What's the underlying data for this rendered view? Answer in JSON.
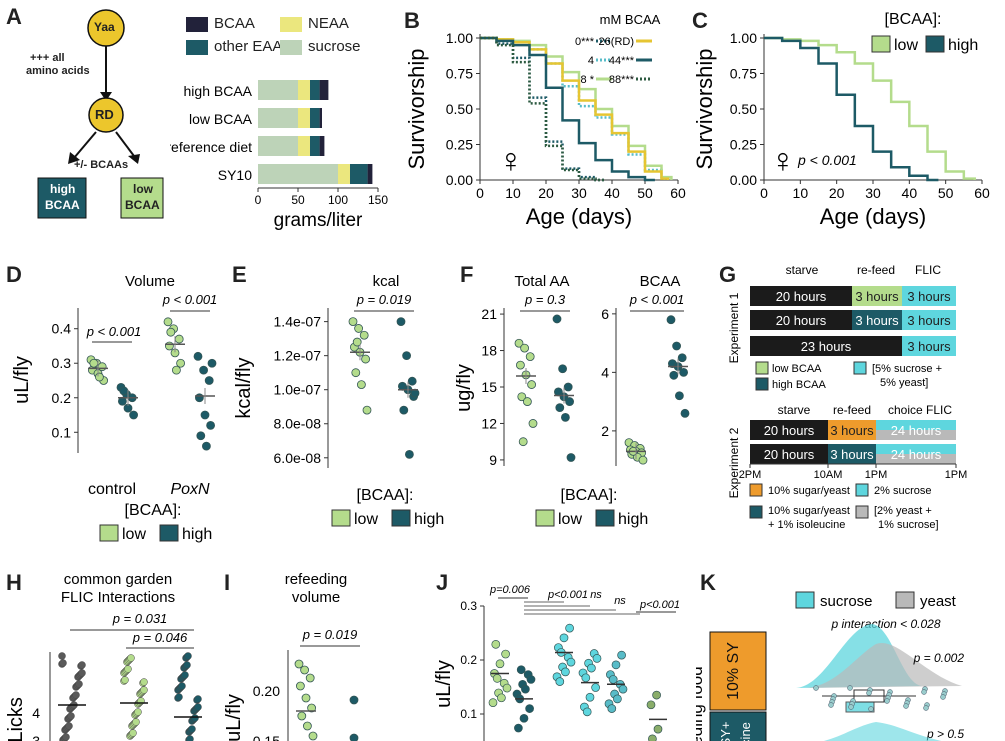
{
  "panel_letters": {
    "A": "A",
    "B": "B",
    "C": "C",
    "D": "D",
    "E": "E",
    "F": "F",
    "G": "G",
    "H": "H",
    "I": "I",
    "J": "J",
    "K": "K"
  },
  "colors": {
    "light_green": "#b4dc8c",
    "dark_teal": "#1d5a66",
    "yellow": "#e6c532",
    "dotted_teal": "#58bcc8",
    "bcaa_navy": "#22223a",
    "neaa_yellow": "#ebe77e",
    "sucrose_sage": "#bdd3b8",
    "orange": "#ee9b2c",
    "cyan": "#5ed6de",
    "grey": "#b9b9b9",
    "dark_grey": "#5a5a5a"
  },
  "panelA": {
    "yaa": "Yaa",
    "all_aa": [
      "+++ all",
      "amino acids"
    ],
    "rd": "RD",
    "pm": "+/- BCAAs",
    "high_box": [
      "high",
      "BCAA"
    ],
    "low_box": [
      "low",
      "BCAA"
    ],
    "legend": [
      "BCAA",
      "NEAA",
      "other EAA",
      "sucrose"
    ]
  },
  "chart_data": [
    {
      "id": "A-bar",
      "type": "bar",
      "orientation": "horizontal",
      "stacked": true,
      "categories": [
        "high BCAA",
        "low BCAA",
        "reference diet",
        "SY10"
      ],
      "series": [
        {
          "name": "sucrose",
          "values": [
            50,
            50,
            50,
            100
          ]
        },
        {
          "name": "NEAA",
          "values": [
            15,
            15,
            15,
            15
          ]
        },
        {
          "name": "other EAA",
          "values": [
            12,
            12,
            12,
            22
          ]
        },
        {
          "name": "BCAA",
          "values": [
            11,
            3,
            6,
            6
          ]
        }
      ],
      "xlabel": "grams/liter",
      "xlim": [
        0,
        150
      ],
      "xticks": [
        "0",
        "50",
        "100",
        "150"
      ]
    },
    {
      "id": "B",
      "type": "line",
      "xlabel": "Age (days)",
      "ylabel": "Survivorship",
      "xlim": [
        0,
        60
      ],
      "ylim": [
        0,
        1
      ],
      "xticks": [
        "0",
        "10",
        "20",
        "30",
        "40",
        "50",
        "60"
      ],
      "yticks": [
        "0.00",
        "0.25",
        "0.50",
        "0.75",
        "1.00"
      ],
      "legend_title": "mM BCAA",
      "series": [
        {
          "name": "0***",
          "style": "dotted",
          "color": "#1d5a66",
          "x": [
            0,
            5,
            10,
            15,
            20,
            25,
            30,
            35,
            38
          ],
          "y": [
            1.0,
            0.96,
            0.86,
            0.58,
            0.27,
            0.08,
            0.02,
            0.0,
            0.0
          ]
        },
        {
          "name": "4",
          "style": "dotted",
          "color": "#58bcc8",
          "x": [
            0,
            5,
            10,
            15,
            20,
            25,
            30,
            35,
            40,
            45,
            50,
            55,
            57
          ],
          "y": [
            1.0,
            0.99,
            0.97,
            0.92,
            0.82,
            0.66,
            0.52,
            0.44,
            0.32,
            0.18,
            0.07,
            0.01,
            0.0
          ]
        },
        {
          "name": "8 *",
          "style": "solid",
          "color": "#b4dc8c",
          "x": [
            0,
            5,
            10,
            15,
            20,
            25,
            30,
            35,
            40,
            45,
            50,
            55,
            58
          ],
          "y": [
            1.0,
            0.99,
            0.98,
            0.95,
            0.87,
            0.76,
            0.64,
            0.5,
            0.38,
            0.24,
            0.1,
            0.02,
            0.0
          ]
        },
        {
          "name": "26(RD)",
          "style": "solid",
          "color": "#e6c532",
          "x": [
            0,
            5,
            10,
            15,
            20,
            25,
            30,
            35,
            40,
            45,
            50,
            55,
            57
          ],
          "y": [
            1.0,
            0.99,
            0.97,
            0.92,
            0.82,
            0.7,
            0.56,
            0.46,
            0.33,
            0.2,
            0.06,
            0.01,
            0.0
          ]
        },
        {
          "name": "44***",
          "style": "solid",
          "color": "#1d5a66",
          "x": [
            0,
            5,
            10,
            15,
            20,
            25,
            30,
            35,
            40,
            45,
            50,
            53
          ],
          "y": [
            1.0,
            0.98,
            0.95,
            0.88,
            0.65,
            0.42,
            0.26,
            0.14,
            0.06,
            0.02,
            0.0,
            0.0
          ]
        },
        {
          "name": "88***",
          "style": "dotted",
          "color": "#2c5a40",
          "x": [
            0,
            5,
            10,
            15,
            20,
            25,
            30,
            35,
            38
          ],
          "y": [
            1.0,
            0.95,
            0.83,
            0.54,
            0.24,
            0.07,
            0.01,
            0.0,
            0.0
          ]
        }
      ],
      "annotation": "♀"
    },
    {
      "id": "C",
      "type": "line",
      "xlabel": "Age (days)",
      "ylabel": "Survivorship",
      "xlim": [
        0,
        60
      ],
      "ylim": [
        0,
        1
      ],
      "xticks": [
        "0",
        "10",
        "20",
        "30",
        "40",
        "50",
        "60"
      ],
      "yticks": [
        "0.00",
        "0.25",
        "0.50",
        "0.75",
        "1.00"
      ],
      "legend_title": "[BCAA]:",
      "series": [
        {
          "name": "low",
          "color": "#b4dc8c",
          "x": [
            0,
            5,
            10,
            15,
            20,
            25,
            30,
            35,
            40,
            45,
            50,
            55,
            58
          ],
          "y": [
            1.0,
            0.99,
            0.98,
            0.95,
            0.9,
            0.82,
            0.7,
            0.55,
            0.38,
            0.2,
            0.06,
            0.01,
            0.0
          ]
        },
        {
          "name": "high",
          "color": "#1d5a66",
          "x": [
            0,
            5,
            10,
            15,
            20,
            25,
            30,
            35,
            40,
            45,
            48
          ],
          "y": [
            1.0,
            0.98,
            0.93,
            0.82,
            0.6,
            0.38,
            0.2,
            0.09,
            0.03,
            0.0,
            0.0
          ]
        }
      ],
      "annotations": [
        "♀",
        "p < 0.001"
      ]
    },
    {
      "id": "D",
      "type": "scatter",
      "title": "Volume",
      "ylabel": "uL/fly",
      "ylim": [
        0.04,
        0.46
      ],
      "yticks": [
        "0.1",
        "0.2",
        "0.3",
        "0.4"
      ],
      "groups": [
        "control",
        "PoxN"
      ],
      "series": [
        {
          "name": "low",
          "group": "control",
          "mean": 0.285,
          "values": [
            0.31,
            0.3,
            0.29,
            0.28,
            0.27,
            0.25,
            0.3,
            0.26
          ]
        },
        {
          "name": "high",
          "group": "control",
          "mean": 0.2,
          "values": [
            0.23,
            0.21,
            0.2,
            0.19,
            0.17,
            0.15,
            0.22
          ]
        },
        {
          "name": "low",
          "group": "PoxN",
          "mean": 0.355,
          "values": [
            0.42,
            0.4,
            0.37,
            0.35,
            0.33,
            0.3,
            0.39,
            0.28
          ]
        },
        {
          "name": "high",
          "group": "PoxN",
          "mean": 0.205,
          "values": [
            0.32,
            0.28,
            0.25,
            0.2,
            0.15,
            0.12,
            0.09,
            0.06,
            0.3
          ]
        }
      ],
      "pvalues": [
        "p < 0.001",
        "p < 0.001"
      ],
      "legend_title": "[BCAA]:",
      "legend": [
        "low",
        "high"
      ]
    },
    {
      "id": "E",
      "type": "scatter",
      "title": "kcal",
      "ylabel": "kcal/fly",
      "ylim": [
        5.4e-08,
        1.48e-07
      ],
      "yticks": [
        "6.0e-08",
        "8.0e-08",
        "1.0e-07",
        "1.2e-07",
        "1.4e-07"
      ],
      "series": [
        {
          "name": "low",
          "mean": 1.22e-07,
          "values": [
            1.4e-07,
            1.36e-07,
            1.32e-07,
            1.25e-07,
            1.22e-07,
            1.18e-07,
            1.1e-07,
            1.03e-07,
            8.8e-08,
            1.28e-07
          ]
        },
        {
          "name": "high",
          "mean": 1e-07,
          "values": [
            1.4e-07,
            1.2e-07,
            1.05e-07,
            1.02e-07,
            1e-07,
            9.6e-08,
            8.8e-08,
            6.2e-08,
            9.8e-08
          ]
        }
      ],
      "pvalue": "p = 0.019",
      "legend_title": "[BCAA]:",
      "legend": [
        "low",
        "high"
      ]
    },
    {
      "id": "F-totalAA",
      "type": "scatter",
      "title": "Total AA",
      "ylabel": "ug/fly",
      "ylim": [
        8.5,
        21.5
      ],
      "yticks": [
        "9",
        "12",
        "15",
        "18",
        "21"
      ],
      "series": [
        {
          "name": "low",
          "mean": 15.9,
          "values": [
            18.6,
            18.2,
            17.5,
            16.8,
            16.0,
            15.2,
            14.2,
            13.8,
            12.0,
            10.5
          ]
        },
        {
          "name": "high",
          "mean": 14.3,
          "values": [
            20.6,
            16.5,
            15.0,
            14.6,
            14.2,
            13.8,
            13.3,
            12.5,
            9.2
          ]
        }
      ],
      "pvalue": "p = 0.3"
    },
    {
      "id": "F-BCAA",
      "type": "scatter",
      "title": "BCAA",
      "ylim": [
        0.8,
        6.2
      ],
      "yticks": [
        "2",
        "4",
        "6"
      ],
      "series": [
        {
          "name": "low",
          "mean": 1.3,
          "values": [
            1.6,
            1.5,
            1.4,
            1.35,
            1.3,
            1.25,
            1.2,
            1.1,
            1.0,
            1.3
          ]
        },
        {
          "name": "high",
          "mean": 4.2,
          "values": [
            5.8,
            4.9,
            4.5,
            4.3,
            4.2,
            4.0,
            3.9,
            3.2,
            2.6
          ]
        }
      ],
      "pvalue": "p < 0.001",
      "legend_title": "[BCAA]:",
      "legend": [
        "low",
        "high"
      ]
    },
    {
      "id": "H",
      "type": "scatter",
      "title": "common garden FLIC Interactions",
      "ylabel": "FLicks",
      "yticks": [
        "3",
        "4"
      ],
      "pvalues": [
        "p = 0.031",
        "p = 0.046"
      ]
    },
    {
      "id": "I",
      "type": "scatter",
      "title": "refeeding volume",
      "ylabel": "uL/fly",
      "yticks": [
        "0.15",
        "0.20"
      ],
      "pvalue": "p = 0.019"
    },
    {
      "id": "J",
      "type": "scatter",
      "ylabel": "uL/fly",
      "yticks": [
        "0.1",
        "0.2",
        "0.3"
      ],
      "pvalues": [
        "p=0.006",
        "p<0.001",
        "ns",
        "ns",
        "p<0.001"
      ]
    },
    {
      "id": "K",
      "type": "other",
      "legend": [
        "sucrose",
        "yeast"
      ],
      "annotations": [
        "p interaction < 0.028",
        "p = 0.002",
        "p > 0.5"
      ],
      "row_labels": [
        "10% SY",
        "SY+",
        "cine"
      ],
      "side_label": "eding food"
    }
  ],
  "panelG": {
    "exp1_label": "Experiment 1",
    "exp2_label": "Experiment 2",
    "exp1_headers": [
      "starve",
      "re-feed",
      "FLIC"
    ],
    "exp1_rows": [
      [
        "20 hours",
        "3 hours",
        "3 hours"
      ],
      [
        "20 hours",
        "3 hours",
        "3 hours"
      ],
      [
        "23 hours",
        "3 hours"
      ]
    ],
    "exp1_legend": [
      "low BCAA",
      "high BCAA",
      "[5% sucrose +",
      "5% yeast]"
    ],
    "exp2_headers": [
      "starve",
      "re-feed",
      "choice FLIC"
    ],
    "exp2_rows": [
      [
        "20 hours",
        "3 hours",
        "24 hours"
      ],
      [
        "20 hours",
        "3 hours",
        "24 hours"
      ]
    ],
    "exp2_times": [
      "2PM",
      "10AM",
      "1PM",
      "1PM"
    ],
    "exp2_legend": [
      "10% sugar/yeast",
      "2% sucrose",
      "10% sugar/yeast",
      "+ 1% isoleucine",
      "[2% yeast +",
      "1% sucrose]"
    ]
  }
}
